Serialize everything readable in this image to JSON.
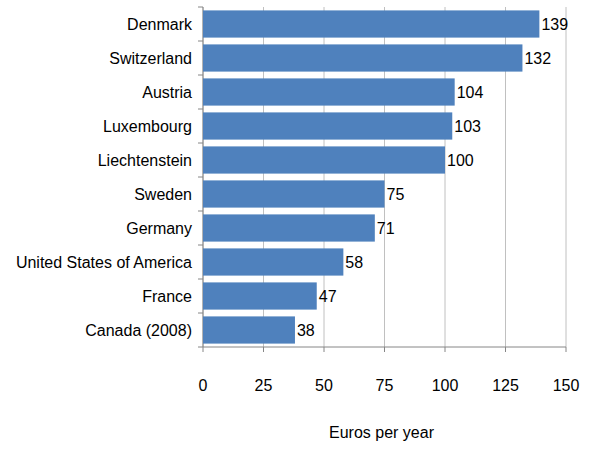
{
  "chart_data": {
    "type": "bar",
    "orientation": "horizontal",
    "categories": [
      "Denmark",
      "Switzerland",
      "Austria",
      "Luxembourg",
      "Liechtenstein",
      "Sweden",
      "Germany",
      "United States of America",
      "France",
      "Canada (2008)"
    ],
    "values": [
      139,
      132,
      104,
      103,
      100,
      75,
      71,
      58,
      47,
      38
    ],
    "color": "#4f81bd",
    "x_label": "Euros per year",
    "xlim": [
      0,
      150
    ],
    "xticks": [
      0,
      25,
      50,
      75,
      100,
      125,
      150
    ],
    "grid": true,
    "data_labels": true
  }
}
